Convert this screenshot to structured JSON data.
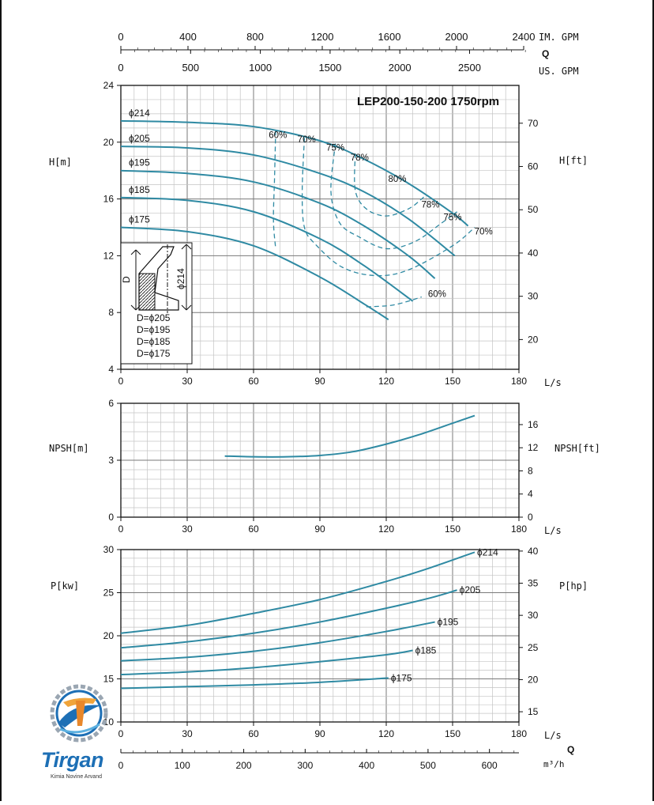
{
  "colors": {
    "curve": "#2f8aa3",
    "grid_minor": "#c4c4c4",
    "grid_major": "#7a7a7a",
    "axis": "#111111"
  },
  "top_axis": {
    "im_gpm": {
      "label": "IM. GPM",
      "ticks": [
        "0",
        "400",
        "800",
        "1200",
        "1600",
        "2000",
        "2400"
      ]
    },
    "us_gpm": {
      "label": "US. GPM",
      "ticks": [
        "0",
        "500",
        "1000",
        "1500",
        "2000",
        "2500"
      ]
    },
    "q_label": "Q"
  },
  "bottom_axis": {
    "m3h_label": "m³/h",
    "q_label": "Q",
    "m3h_ticks": [
      "0",
      "100",
      "200",
      "300",
      "400",
      "500",
      "600"
    ]
  },
  "chart_data": [
    {
      "type": "line",
      "title": "LEP200-150-200 1750rpm",
      "xlabel": "L/s",
      "ylabel": "H[m]",
      "ylabel_right": "H[ft]",
      "xlim": [
        0,
        180
      ],
      "ylim": [
        4,
        24
      ],
      "x_ticks": [
        0,
        30,
        60,
        90,
        120,
        150,
        180
      ],
      "y_ticks": [
        4,
        8,
        12,
        16,
        20,
        24
      ],
      "y_ticks_right": [
        20,
        30,
        40,
        50,
        60,
        70
      ],
      "grid": true,
      "series": [
        {
          "name": "ϕ214",
          "x": [
            0,
            30,
            60,
            90,
            110,
            130,
            150,
            157
          ],
          "y": [
            21.5,
            21.4,
            21.1,
            20.1,
            18.8,
            17.1,
            15.0,
            14.1
          ]
        },
        {
          "name": "ϕ205",
          "x": [
            0,
            30,
            60,
            90,
            110,
            130,
            151
          ],
          "y": [
            19.7,
            19.6,
            19.1,
            17.8,
            16.5,
            14.6,
            12.0
          ]
        },
        {
          "name": "ϕ195",
          "x": [
            0,
            30,
            60,
            90,
            110,
            130,
            142
          ],
          "y": [
            18.0,
            17.8,
            17.2,
            15.7,
            14.1,
            12.0,
            10.4
          ]
        },
        {
          "name": "ϕ185",
          "x": [
            0,
            30,
            60,
            90,
            110,
            132
          ],
          "y": [
            16.1,
            15.9,
            15.1,
            13.2,
            11.3,
            8.8
          ]
        },
        {
          "name": "ϕ175",
          "x": [
            0,
            30,
            60,
            90,
            110,
            121
          ],
          "y": [
            14.0,
            13.7,
            12.7,
            10.5,
            8.6,
            7.5
          ]
        }
      ],
      "efficiency_labels": [
        {
          "text": "60%",
          "x": 71,
          "y": 20.3
        },
        {
          "text": "70%",
          "x": 84,
          "y": 20.0
        },
        {
          "text": "75%",
          "x": 97,
          "y": 19.4
        },
        {
          "text": "78%",
          "x": 108,
          "y": 18.7
        },
        {
          "text": "80%",
          "x": 125,
          "y": 17.2
        },
        {
          "text": "78%",
          "x": 140,
          "y": 15.4
        },
        {
          "text": "75%",
          "x": 150,
          "y": 14.5
        },
        {
          "text": "70%",
          "x": 164,
          "y": 13.5
        },
        {
          "text": "60%",
          "x": 143,
          "y": 9.1
        }
      ],
      "efficiency_curves": [
        {
          "name": "60%",
          "x": [
            70,
            69.5,
            69.0,
            70
          ],
          "y": [
            20.8,
            17.5,
            14.5,
            12.5
          ]
        },
        {
          "name": "70%",
          "x": [
            83,
            82,
            83,
            88,
            100,
            115,
            130,
            150,
            160
          ],
          "y": [
            20.3,
            16.5,
            14.0,
            12.8,
            11.2,
            10.6,
            11.0,
            12.7,
            14.0
          ]
        },
        {
          "name": "75%",
          "x": [
            97,
            95,
            99,
            108,
            120,
            133,
            145,
            152
          ],
          "y": [
            19.9,
            16.5,
            14.3,
            13.3,
            12.5,
            13.0,
            14.3,
            15.1
          ]
        },
        {
          "name": "78%",
          "x": [
            106,
            106,
            111,
            120,
            130,
            136,
            138
          ],
          "y": [
            19.2,
            16.6,
            15.3,
            14.8,
            15.3,
            16.0,
            16.3
          ]
        },
        {
          "name": "60%",
          "x": [
            111,
            122,
            130,
            136
          ],
          "y": [
            8.4,
            8.5,
            8.8,
            9.1
          ]
        }
      ],
      "diameter_legend": [
        "D=ϕ205",
        "D=ϕ195",
        "D=ϕ185",
        "D=ϕ175"
      ],
      "impeller_labels": {
        "d": "D",
        "max": "ϕ214"
      }
    },
    {
      "type": "line",
      "xlabel": "L/s",
      "ylabel": "NPSH[m]",
      "ylabel_right": "NPSH[ft]",
      "xlim": [
        0,
        180
      ],
      "ylim": [
        0,
        6
      ],
      "x_ticks": [
        0,
        30,
        60,
        90,
        120,
        150,
        180
      ],
      "y_ticks": [
        0,
        3,
        6
      ],
      "y_ticks_right": [
        0,
        4,
        8,
        12,
        16
      ],
      "grid": true,
      "series": [
        {
          "name": "NPSH",
          "x": [
            47,
            60,
            75,
            90,
            105,
            120,
            135,
            150,
            160
          ],
          "y": [
            3.22,
            3.18,
            3.18,
            3.25,
            3.45,
            3.85,
            4.35,
            4.95,
            5.35
          ]
        }
      ]
    },
    {
      "type": "line",
      "xlabel": "L/s",
      "ylabel": "P[kw]",
      "ylabel_right": "P[hp]",
      "xlim": [
        0,
        180
      ],
      "ylim": [
        10,
        30
      ],
      "x_ticks": [
        0,
        30,
        60,
        90,
        120,
        150,
        180
      ],
      "y_ticks": [
        10,
        15,
        20,
        25,
        30
      ],
      "y_ticks_right": [
        15,
        20,
        25,
        30,
        35,
        40
      ],
      "grid": true,
      "series": [
        {
          "name": "ϕ214",
          "x": [
            0,
            30,
            60,
            90,
            120,
            140,
            160
          ],
          "y": [
            20.3,
            21.2,
            22.6,
            24.2,
            26.3,
            27.9,
            29.7
          ]
        },
        {
          "name": "ϕ205",
          "x": [
            0,
            30,
            60,
            90,
            120,
            140,
            152
          ],
          "y": [
            18.6,
            19.3,
            20.3,
            21.6,
            23.2,
            24.4,
            25.3
          ]
        },
        {
          "name": "ϕ195",
          "x": [
            0,
            30,
            60,
            90,
            120,
            142
          ],
          "y": [
            17.1,
            17.5,
            18.2,
            19.2,
            20.5,
            21.6
          ]
        },
        {
          "name": "ϕ185",
          "x": [
            0,
            30,
            60,
            90,
            120,
            132
          ],
          "y": [
            15.5,
            15.8,
            16.3,
            17.0,
            17.8,
            18.3
          ]
        },
        {
          "name": "ϕ175",
          "x": [
            0,
            30,
            60,
            90,
            121
          ],
          "y": [
            13.9,
            14.1,
            14.3,
            14.6,
            15.1
          ]
        }
      ]
    }
  ]
}
